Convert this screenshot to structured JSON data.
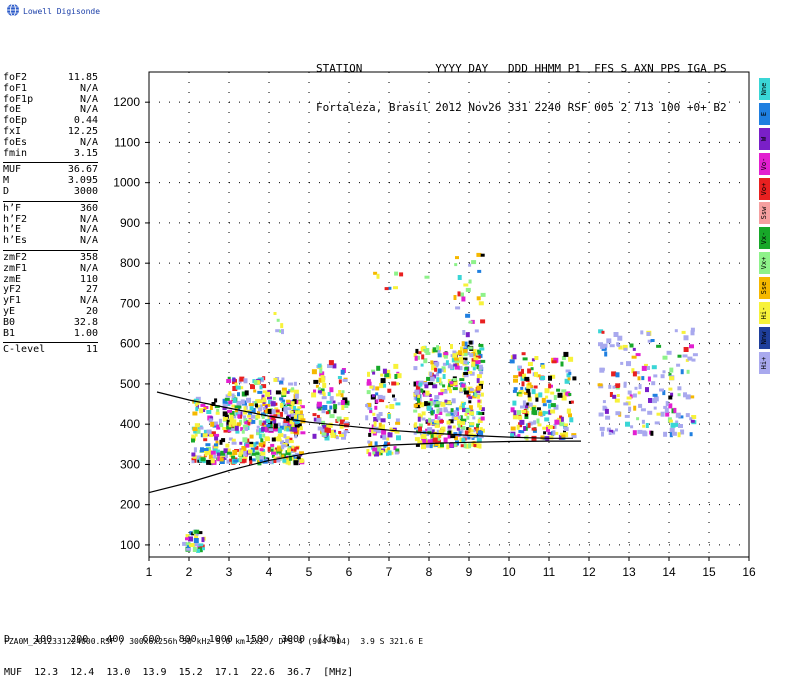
{
  "brand": {
    "name": "Lowell Digisonde",
    "logo_icon": "globe-icon"
  },
  "header": {
    "line1": "STATION           YYYY DAY   DDD HHMM P1  FFS S AXN PPS IGA PS",
    "line2": "Fortaleza, Brasil 2012 Nov26 331 2240 RSF 005 2 713 100 +0+ B2"
  },
  "params": [
    [
      {
        "label": "foF2",
        "value": "11.85"
      },
      {
        "label": "foF1",
        "value": "N/A"
      },
      {
        "label": "foF1p",
        "value": "N/A"
      },
      {
        "label": "foE",
        "value": "N/A"
      },
      {
        "label": "foEp",
        "value": "0.44"
      },
      {
        "label": "fxI",
        "value": "12.25"
      },
      {
        "label": "foEs",
        "value": "N/A"
      },
      {
        "label": "fmin",
        "value": "3.15"
      }
    ],
    [
      {
        "label": "MUF",
        "value": "36.67"
      },
      {
        "label": "M",
        "value": "3.095"
      },
      {
        "label": "D",
        "value": "3000"
      }
    ],
    [
      {
        "label": "h’F",
        "value": "360"
      },
      {
        "label": "h’F2",
        "value": "N/A"
      },
      {
        "label": "h’E",
        "value": "N/A"
      },
      {
        "label": "h’Es",
        "value": "N/A"
      }
    ],
    [
      {
        "label": "zmF2",
        "value": "358"
      },
      {
        "label": "zmF1",
        "value": "N/A"
      },
      {
        "label": "zmE",
        "value": "110"
      },
      {
        "label": "yF2",
        "value": "27"
      },
      {
        "label": "yF1",
        "value": "N/A"
      },
      {
        "label": "yE",
        "value": "20"
      },
      {
        "label": "B0",
        "value": "32.8"
      },
      {
        "label": "B1",
        "value": "1.00"
      }
    ],
    [
      {
        "label": "C-level",
        "value": "11"
      }
    ]
  ],
  "legend": [
    {
      "label": "Nne",
      "color": "#3ad6d6"
    },
    {
      "label": "E",
      "color": "#1f7fe0"
    },
    {
      "label": "W",
      "color": "#7a1fc8"
    },
    {
      "label": "Vo-",
      "color": "#e21fd0"
    },
    {
      "label": "Vo+",
      "color": "#e82020"
    },
    {
      "label": "Ssw",
      "color": "#f5a0a0"
    },
    {
      "label": "Vx-",
      "color": "#17a829"
    },
    {
      "label": "Vx+",
      "color": "#8ef28a"
    },
    {
      "label": "Sse",
      "color": "#f5b800"
    },
    {
      "label": "Hi-",
      "color": "#f7f23a"
    },
    {
      "label": "Nnw",
      "color": "#1f3f9c"
    },
    {
      "label": "Hi+",
      "color": "#a9a9ee"
    }
  ],
  "muf_table": {
    "row1": "D    100   200   400   600   800  1000  1500  3000  [km]",
    "row2": "MUF  12.3  12.4  13.0  13.9  15.2  17.1  22.6  36.7  [MHz]"
  },
  "footer": "FZA0M_2012331224000.RSF / 300x6x256h 50 kHz 5.0 km 2x2 / DPS-4 (904-904)  3.9 S 321.6 E",
  "chart_data": {
    "type": "scatter",
    "title": "",
    "xlabel": "",
    "ylabel": "",
    "xlim": [
      1,
      16
    ],
    "ylim": [
      70,
      1275
    ],
    "x_ticks": [
      1,
      2,
      3,
      4,
      5,
      6,
      7,
      8,
      9,
      10,
      11,
      12,
      13,
      14,
      15,
      16
    ],
    "y_ticks": [
      100,
      200,
      300,
      400,
      500,
      600,
      700,
      800,
      900,
      1000,
      1100,
      1200
    ],
    "grid": true,
    "curves": [
      {
        "name": "",
        "x": [
          1.2,
          2,
          3,
          4,
          5,
          6,
          7,
          8,
          9,
          10,
          11,
          11.6
        ],
        "y": [
          480,
          460,
          440,
          420,
          405,
          395,
          385,
          378,
          372,
          368,
          365,
          365
        ]
      },
      {
        "name": "",
        "x": [
          1.0,
          2,
          3,
          4,
          5,
          6,
          7,
          8,
          9,
          10,
          11,
          11.8
        ],
        "y": [
          230,
          255,
          285,
          310,
          328,
          340,
          348,
          352,
          355,
          357,
          358,
          358
        ]
      }
    ],
    "point_clusters": [
      {
        "x": [
          1.75,
          2.45
        ],
        "y": [
          90,
          140
        ]
      },
      {
        "x": [
          2.05,
          4.8
        ],
        "y": [
          310,
          470
        ]
      },
      {
        "x": [
          2.9,
          4.7
        ],
        "y": [
          390,
          520
        ]
      },
      {
        "x": [
          4.1,
          4.3
        ],
        "y": [
          630,
          690
        ]
      },
      {
        "x": [
          5.05,
          5.9
        ],
        "y": [
          370,
          560
        ]
      },
      {
        "x": [
          6.4,
          7.2
        ],
        "y": [
          330,
          550
        ]
      },
      {
        "x": [
          7.6,
          9.3
        ],
        "y": [
          350,
          600
        ]
      },
      {
        "x": [
          8.6,
          9.3
        ],
        "y": [
          550,
          830
        ]
      },
      {
        "x": [
          10.0,
          11.6
        ],
        "y": [
          370,
          580
        ]
      },
      {
        "x": [
          12.2,
          14.6
        ],
        "y": [
          380,
          640
        ]
      },
      {
        "x": [
          6.6,
          8.5
        ],
        "y": [
          740,
          780
        ]
      }
    ]
  }
}
